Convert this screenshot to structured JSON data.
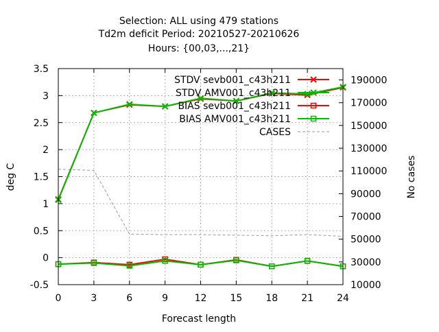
{
  "chart_data": {
    "type": "line",
    "title_lines": [
      "Selection: ALL using   479 stations",
      "Td2m deficit   Period: 20210527-20210626",
      "Hours: {00,03,...,21}"
    ],
    "xlabel": "Forecast length",
    "ylabel": "deg C",
    "y2label": "No cases",
    "x": [
      0,
      3,
      6,
      9,
      12,
      15,
      18,
      21,
      24
    ],
    "xlim": [
      0,
      24
    ],
    "ylim": [
      -0.5,
      3.5
    ],
    "y2lim": [
      10000,
      200000
    ],
    "x_ticks": [
      "0",
      "3",
      "6",
      "9",
      "12",
      "15",
      "18",
      "21",
      "24"
    ],
    "y_ticks": [
      "3.5",
      "3",
      "2.5",
      "2",
      "1.5",
      "1",
      "0.5",
      "0",
      "-0.5"
    ],
    "y2_ticks": [
      "190000",
      "170000",
      "150000",
      "130000",
      "110000",
      "90000",
      "70000",
      "50000",
      "30000",
      "10000"
    ],
    "grid": true,
    "legend_position": "top-right",
    "series": [
      {
        "name": "STDV sevb001_c43h211",
        "axis": "left",
        "color": "#ff0000",
        "marker": "x",
        "values": [
          1.08,
          2.68,
          2.83,
          2.8,
          2.94,
          2.9,
          3.04,
          3.01,
          3.15
        ]
      },
      {
        "name": "STDV AMV001_c43h211",
        "axis": "left",
        "color": "#00bb00",
        "marker": "x",
        "values": [
          1.07,
          2.68,
          2.84,
          2.8,
          2.95,
          2.9,
          3.05,
          3.03,
          3.16
        ]
      },
      {
        "name": "BIAS sevb001_c43h211",
        "axis": "left",
        "color": "#ff0000",
        "marker": "square",
        "values": [
          -0.12,
          -0.09,
          -0.13,
          -0.03,
          -0.13,
          -0.04,
          -0.16,
          -0.06,
          -0.16
        ]
      },
      {
        "name": "BIAS AMV001_c43h211",
        "axis": "left",
        "color": "#00bb00",
        "marker": "square",
        "values": [
          -0.12,
          -0.1,
          -0.15,
          -0.06,
          -0.13,
          -0.05,
          -0.16,
          -0.06,
          -0.16
        ]
      },
      {
        "name": "CASES",
        "axis": "right",
        "color": "#999999",
        "marker": "none",
        "dashed": true,
        "values": [
          111500,
          110500,
          54500,
          54000,
          54000,
          53500,
          53000,
          54000,
          52500
        ]
      }
    ]
  }
}
